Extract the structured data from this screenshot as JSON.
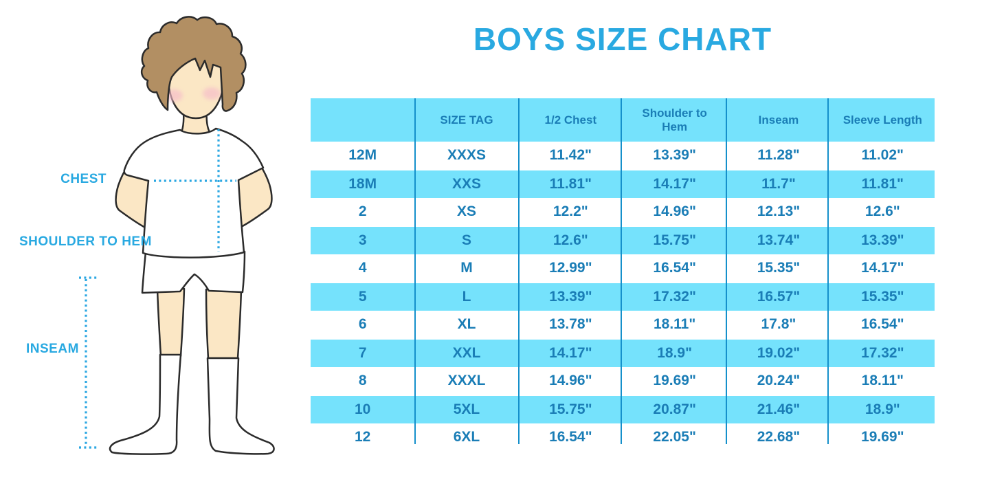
{
  "title": "BOYS SIZE CHART",
  "figure": {
    "description": "cartoon boy in white t-shirt, shorts and knee socks with measurement guides",
    "labels": {
      "chest": "CHEST",
      "shoulder_to_hem": "SHOULDER TO HEM",
      "inseam": "INSEAM"
    }
  },
  "colors": {
    "accent_blue": "#29A9E1",
    "table_text_blue": "#1A7DB6",
    "row_cyan": "#75E2FC",
    "divider_blue": "#1590CB",
    "skin": "#FBE7C5",
    "hair_brown": "#B28F63",
    "blush_pink": "#F5BBC9"
  },
  "chart_data": {
    "type": "table",
    "title": "BOYS SIZE CHART",
    "columns": [
      "",
      "SIZE TAG",
      "1/2 Chest",
      "Shoulder to Hem",
      "Inseam",
      "Sleeve Length"
    ],
    "rows": [
      [
        "12M",
        "XXXS",
        "11.42\"",
        "13.39\"",
        "11.28\"",
        "11.02\""
      ],
      [
        "18M",
        "XXS",
        "11.81\"",
        "14.17\"",
        "11.7\"",
        "11.81\""
      ],
      [
        "2",
        "XS",
        "12.2\"",
        "14.96\"",
        "12.13\"",
        "12.6\""
      ],
      [
        "3",
        "S",
        "12.6\"",
        "15.75\"",
        "13.74\"",
        "13.39\""
      ],
      [
        "4",
        "M",
        "12.99\"",
        "16.54\"",
        "15.35\"",
        "14.17\""
      ],
      [
        "5",
        "L",
        "13.39\"",
        "17.32\"",
        "16.57\"",
        "15.35\""
      ],
      [
        "6",
        "XL",
        "13.78\"",
        "18.11\"",
        "17.8\"",
        "16.54\""
      ],
      [
        "7",
        "XXL",
        "14.17\"",
        "18.9\"",
        "19.02\"",
        "17.32\""
      ],
      [
        "8",
        "XXXL",
        "14.96\"",
        "19.69\"",
        "20.24\"",
        "18.11\""
      ],
      [
        "10",
        "5XL",
        "15.75\"",
        "20.87\"",
        "21.46\"",
        "18.9\""
      ],
      [
        "12",
        "6XL",
        "16.54\"",
        "22.05\"",
        "22.68\"",
        "19.69\""
      ]
    ],
    "layout": {
      "row_striping": [
        "white",
        "cyan"
      ],
      "header_background": "cyan",
      "grid": "vertical-dividers-only"
    }
  }
}
